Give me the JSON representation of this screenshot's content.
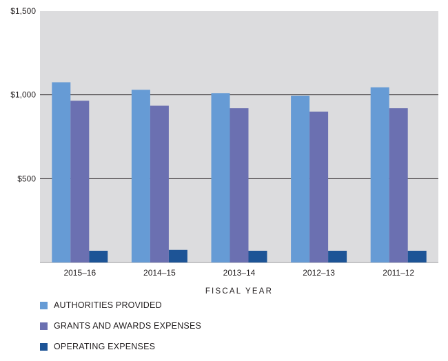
{
  "chart_data": {
    "type": "bar",
    "categories": [
      "2015–16",
      "2014–15",
      "2013–14",
      "2012–13",
      "2011–12"
    ],
    "series": [
      {
        "name": "AUTHORITIES PROVIDED",
        "color": "#669bd5",
        "values": [
          1075,
          1030,
          1010,
          995,
          1045
        ]
      },
      {
        "name": "GRANTS AND AWARDS EXPENSES",
        "color": "#6b70b1",
        "values": [
          965,
          935,
          920,
          900,
          920
        ]
      },
      {
        "name": "OPERATING EXPENSES",
        "color": "#1d5496",
        "values": [
          70,
          75,
          70,
          70,
          70
        ]
      }
    ],
    "xlabel": "FISCAL YEAR",
    "ylabel": "",
    "ylim": [
      0,
      1500
    ],
    "yticks": [
      500,
      1000,
      1500
    ],
    "ytick_labels": [
      "$500",
      "$1,000",
      "$1,500"
    ],
    "grid": true,
    "legend_position": "bottom-left",
    "plot_background": "#dcdcde"
  }
}
